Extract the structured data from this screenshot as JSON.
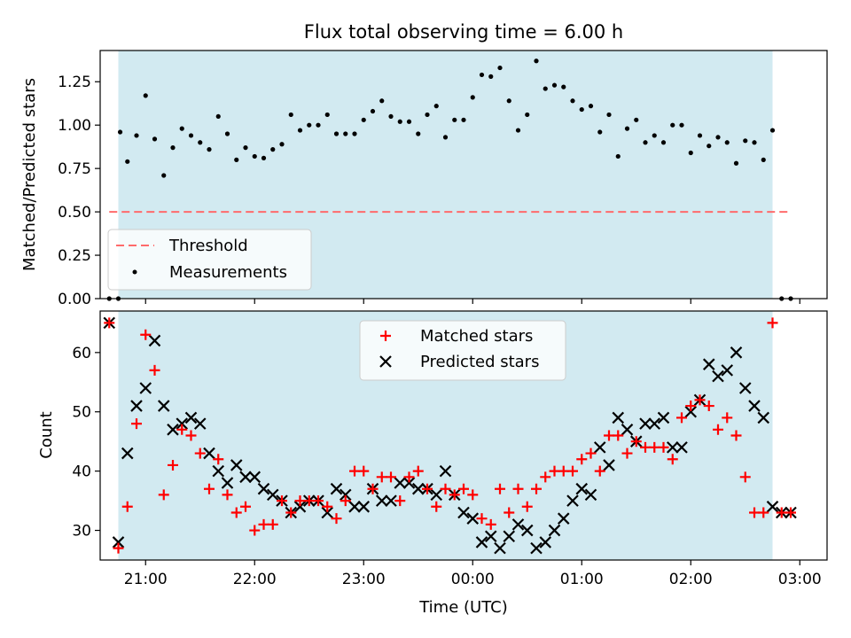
{
  "chart_data": [
    {
      "type": "scatter",
      "title": "Flux total observing time = 6.00 h",
      "ylabel": "Matched/Predicted stars",
      "xlabel": "",
      "xlim": [
        "20:35",
        "03:15"
      ],
      "ylim": [
        0,
        1.43
      ],
      "yticks": [
        0.0,
        0.25,
        0.5,
        0.75,
        1.0,
        1.25
      ],
      "ytick_labels": [
        "0.00",
        "0.25",
        "0.50",
        "0.75",
        "1.00",
        "1.25"
      ],
      "shaded_span": [
        "20:45",
        "02:45"
      ],
      "threshold": {
        "value": 0.5,
        "x_range": [
          "20:40",
          "02:55"
        ]
      },
      "legend": {
        "placement": "lower-left",
        "entries": [
          "Threshold",
          "Measurements"
        ]
      },
      "series": [
        {
          "name": "Measurements",
          "x": [
            "20:40",
            "20:45",
            "20:46",
            "20:50",
            "20:55",
            "21:00",
            "21:05",
            "21:10",
            "21:15",
            "21:20",
            "21:25",
            "21:30",
            "21:35",
            "21:40",
            "21:45",
            "21:50",
            "21:55",
            "22:00",
            "22:05",
            "22:10",
            "22:15",
            "22:20",
            "22:25",
            "22:30",
            "22:35",
            "22:40",
            "22:45",
            "22:50",
            "22:55",
            "23:00",
            "23:05",
            "23:10",
            "23:15",
            "23:20",
            "23:25",
            "23:30",
            "23:35",
            "23:40",
            "23:45",
            "23:50",
            "23:55",
            "00:00",
            "00:05",
            "00:10",
            "00:15",
            "00:20",
            "00:25",
            "00:30",
            "00:35",
            "00:40",
            "00:45",
            "00:50",
            "00:55",
            "01:00",
            "01:05",
            "01:10",
            "01:15",
            "01:20",
            "01:25",
            "01:30",
            "01:35",
            "01:40",
            "01:45",
            "01:50",
            "01:55",
            "02:00",
            "02:05",
            "02:10",
            "02:15",
            "02:20",
            "02:25",
            "02:30",
            "02:35",
            "02:40",
            "02:45",
            "02:50",
            "02:55"
          ],
          "y": [
            0.0,
            0.0,
            0.96,
            0.79,
            0.94,
            1.17,
            0.92,
            0.71,
            0.87,
            0.98,
            0.94,
            0.9,
            0.86,
            1.05,
            0.95,
            0.8,
            0.87,
            0.82,
            0.81,
            0.86,
            0.89,
            1.06,
            0.97,
            1.0,
            1.0,
            1.06,
            0.95,
            0.95,
            0.95,
            1.03,
            1.08,
            1.14,
            1.05,
            1.02,
            1.02,
            0.95,
            1.06,
            1.11,
            0.93,
            1.03,
            1.03,
            1.16,
            1.29,
            1.28,
            1.33,
            1.14,
            0.97,
            1.06,
            1.37,
            1.21,
            1.23,
            1.22,
            1.14,
            1.09,
            1.11,
            0.96,
            1.06,
            0.82,
            0.98,
            1.03,
            0.9,
            0.94,
            0.9,
            1.0,
            1.0,
            0.84,
            0.94,
            0.88,
            0.93,
            0.9,
            0.78,
            0.91,
            0.9,
            0.8,
            0.97,
            0.0,
            0.0
          ]
        }
      ]
    },
    {
      "type": "scatter",
      "title": "",
      "xlabel": "Time (UTC)",
      "ylabel": "Count",
      "xlim": [
        "20:35",
        "03:15"
      ],
      "ylim": [
        25,
        67
      ],
      "yticks": [
        30,
        40,
        50,
        60
      ],
      "ytick_labels": [
        "30",
        "40",
        "50",
        "60"
      ],
      "xticks": [
        "21:00",
        "22:00",
        "23:00",
        "00:00",
        "01:00",
        "02:00",
        "03:00"
      ],
      "xtick_labels": [
        "21:00",
        "22:00",
        "23:00",
        "00:00",
        "01:00",
        "02:00",
        "03:00"
      ],
      "shaded_span": [
        "20:45",
        "02:45"
      ],
      "legend": {
        "placement": "upper-center",
        "entries": [
          "Matched stars",
          "Predicted stars"
        ]
      },
      "x": [
        "20:40",
        "20:45",
        "20:50",
        "20:55",
        "21:00",
        "21:05",
        "21:10",
        "21:15",
        "21:20",
        "21:25",
        "21:30",
        "21:35",
        "21:40",
        "21:45",
        "21:50",
        "21:55",
        "22:00",
        "22:05",
        "22:10",
        "22:15",
        "22:20",
        "22:25",
        "22:30",
        "22:35",
        "22:40",
        "22:45",
        "22:50",
        "22:55",
        "23:00",
        "23:05",
        "23:10",
        "23:15",
        "23:20",
        "23:25",
        "23:30",
        "23:35",
        "23:40",
        "23:45",
        "23:50",
        "23:55",
        "00:00",
        "00:05",
        "00:10",
        "00:15",
        "00:20",
        "00:25",
        "00:30",
        "00:35",
        "00:40",
        "00:45",
        "00:50",
        "00:55",
        "01:00",
        "01:05",
        "01:10",
        "01:15",
        "01:20",
        "01:25",
        "01:30",
        "01:35",
        "01:40",
        "01:45",
        "01:50",
        "01:55",
        "02:00",
        "02:05",
        "02:10",
        "02:15",
        "02:20",
        "02:25",
        "02:30",
        "02:35",
        "02:40",
        "02:45",
        "02:50",
        "02:55"
      ],
      "series": [
        {
          "name": "Matched stars",
          "marker": "plus",
          "color": "#ff0000",
          "y": [
            65,
            27,
            34,
            48,
            63,
            57,
            36,
            41,
            47,
            46,
            43,
            37,
            42,
            36,
            33,
            34,
            30,
            31,
            31,
            35,
            33,
            35,
            35,
            35,
            34,
            32,
            35,
            40,
            40,
            37,
            39,
            39,
            35,
            39,
            40,
            37,
            34,
            37,
            36,
            37,
            36,
            32,
            31,
            37,
            33,
            37,
            34,
            37,
            39,
            40,
            40,
            40,
            42,
            43,
            40,
            46,
            46,
            43,
            45,
            44,
            44,
            44,
            42,
            49,
            51,
            52,
            51,
            47,
            49,
            46,
            39,
            33,
            33,
            65,
            33,
            33
          ]
        },
        {
          "name": "Predicted stars",
          "marker": "x",
          "color": "#000000",
          "y": [
            65,
            28,
            43,
            51,
            54,
            62,
            51,
            47,
            48,
            49,
            48,
            43,
            40,
            38,
            41,
            39,
            39,
            37,
            36,
            35,
            33,
            34,
            35,
            35,
            33,
            37,
            36,
            34,
            34,
            37,
            35,
            35,
            38,
            38,
            37,
            37,
            36,
            40,
            36,
            33,
            32,
            28,
            29,
            27,
            29,
            31,
            30,
            27,
            28,
            30,
            32,
            35,
            37,
            36,
            44,
            41,
            49,
            47,
            45,
            48,
            48,
            49,
            44,
            44,
            50,
            52,
            58,
            56,
            57,
            60,
            54,
            51,
            49,
            34,
            33,
            33
          ]
        }
      ]
    }
  ]
}
